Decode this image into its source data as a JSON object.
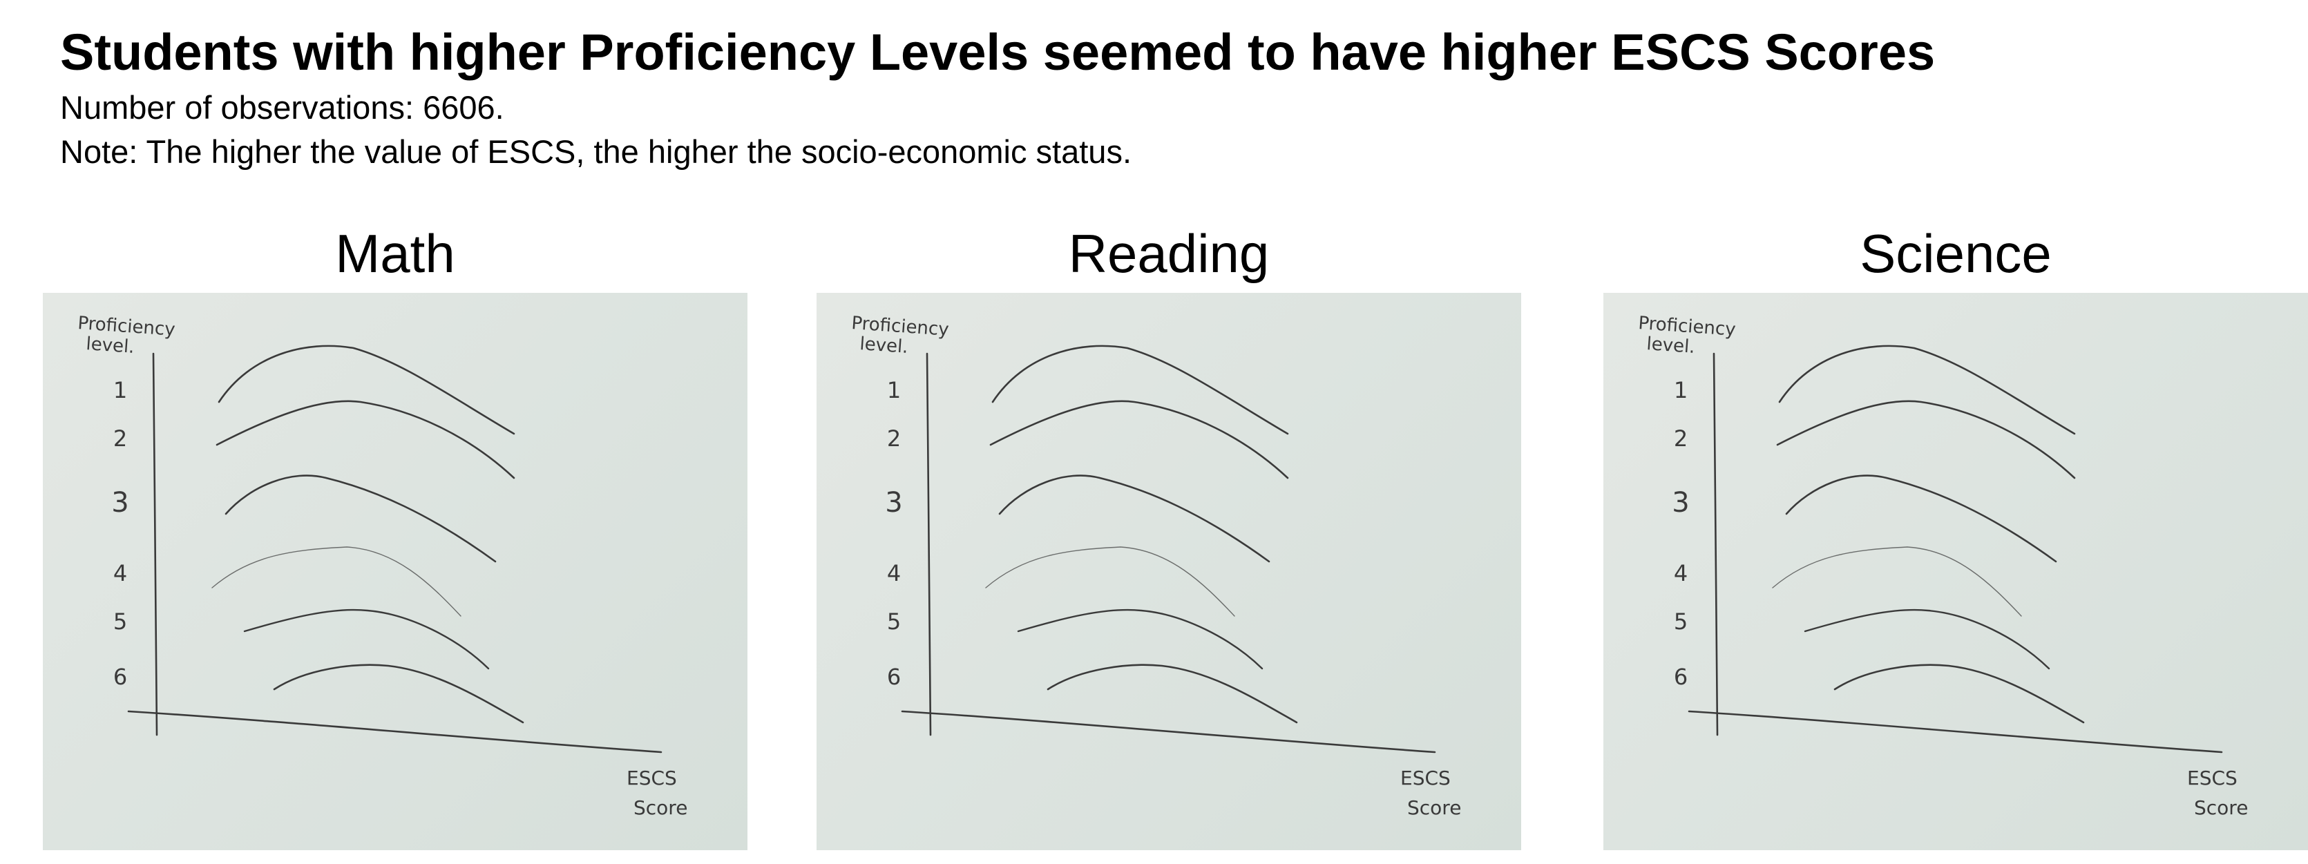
{
  "title": "Students with higher Proficiency Levels seemed to have higher ESCS Scores",
  "observations_text": "Number of observations: 6606.",
  "note_text": "Note: The higher the value of ESCS, the higher the socio-economic status.",
  "chart_data": [
    {
      "type": "line",
      "title": "Math",
      "ylabel": "Proficiency level.",
      "xlabel": "ESCS Score",
      "y_ticks": [
        "1",
        "2",
        "3",
        "4",
        "5",
        "6"
      ],
      "series": [
        {
          "label": "1"
        },
        {
          "label": "2"
        },
        {
          "label": "3"
        },
        {
          "label": "4"
        },
        {
          "label": "5"
        },
        {
          "label": "6"
        }
      ],
      "grid": false
    },
    {
      "type": "line",
      "title": "Reading",
      "ylabel": "Proficiency level.",
      "xlabel": "ESCS Score",
      "y_ticks": [
        "1",
        "2",
        "3",
        "4",
        "5",
        "6"
      ],
      "series": [
        {
          "label": "1"
        },
        {
          "label": "2"
        },
        {
          "label": "3"
        },
        {
          "label": "4"
        },
        {
          "label": "5"
        },
        {
          "label": "6"
        }
      ],
      "grid": false
    },
    {
      "type": "line",
      "title": "Science",
      "ylabel": "Proficiency level.",
      "xlabel": "ESCS Score",
      "y_ticks": [
        "1",
        "2",
        "3",
        "4",
        "5",
        "6"
      ],
      "series": [
        {
          "label": "1"
        },
        {
          "label": "2"
        },
        {
          "label": "3"
        },
        {
          "label": "4"
        },
        {
          "label": "5"
        },
        {
          "label": "6"
        }
      ],
      "grid": false
    }
  ],
  "colors": {
    "ink": "#3a3a3a",
    "paper": "#dfe6e1"
  }
}
